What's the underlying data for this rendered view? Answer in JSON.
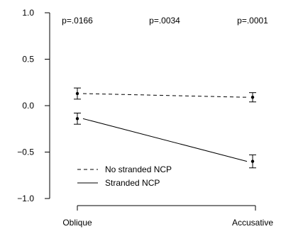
{
  "chart_data": {
    "type": "line",
    "categories": [
      "Oblique",
      "Accusative"
    ],
    "series": [
      {
        "name": "No stranded NCP",
        "linestyle": "dashed",
        "values": [
          0.13,
          0.09
        ],
        "error_low": [
          0.07,
          0.04
        ],
        "error_high": [
          0.19,
          0.14
        ]
      },
      {
        "name": "Stranded NCP",
        "linestyle": "solid",
        "values": [
          -0.14,
          -0.6
        ],
        "error_low": [
          -0.2,
          -0.67
        ],
        "error_high": [
          -0.08,
          -0.53
        ]
      }
    ],
    "annotations": [
      "p=.0166",
      "p=.0034",
      "p=.0001"
    ],
    "ylim": [
      -1.0,
      1.0
    ],
    "y_ticks": [
      "1.0",
      "0.5",
      "0.0",
      "−0.5",
      "−1.0"
    ],
    "y_tick_values": [
      1.0,
      0.5,
      0.0,
      -0.5,
      -1.0
    ],
    "legend": {
      "placement": "bottom-left",
      "entries": [
        "No stranded NCP",
        "Stranded NCP"
      ]
    },
    "grid": false
  }
}
